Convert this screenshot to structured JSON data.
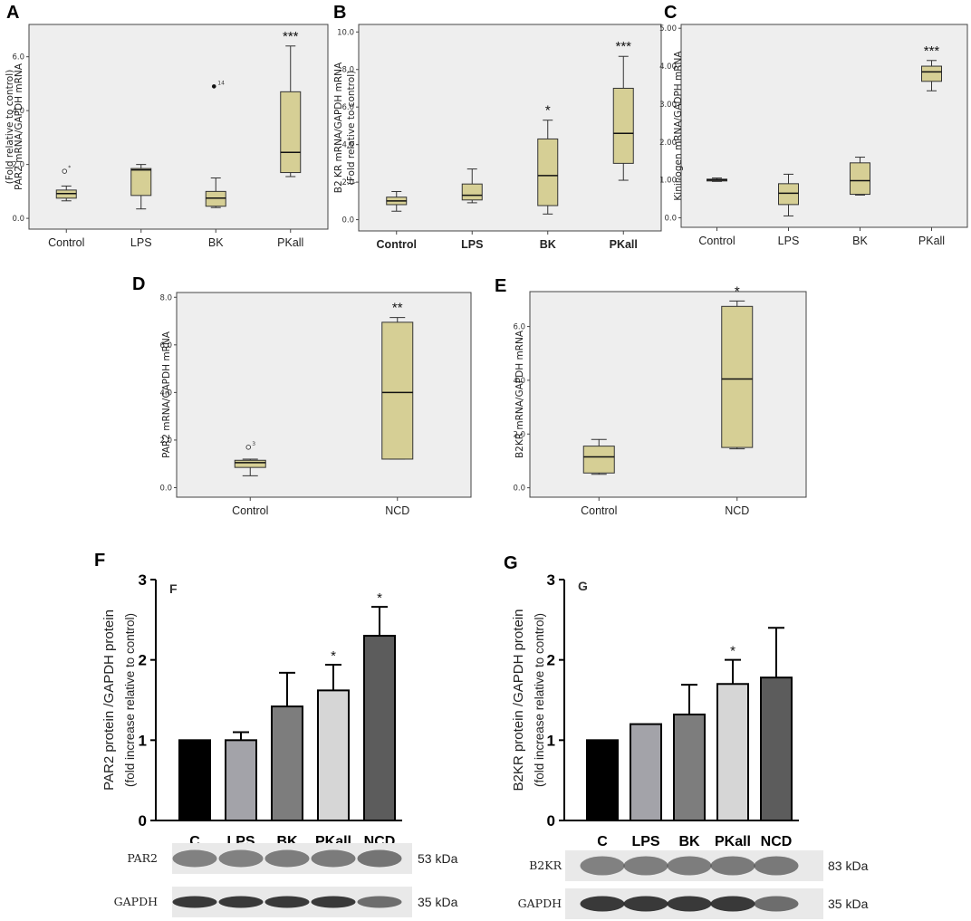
{
  "colors": {
    "box_fill": "#d6cf95",
    "box_stroke": "#333333",
    "plot_bg": "#eeeeee",
    "bar_colors": [
      "#000000",
      "#a3a3a9",
      "#7d7d7d",
      "#d6d6d6",
      "#5c5c5c"
    ]
  },
  "chart_data": [
    {
      "panel": "A",
      "type": "box",
      "ylabel": [
        "PAR2 mRNA/GAPDH mRNA",
        "(Fold relative to control)"
      ],
      "ylim": [
        -0.4,
        7.2
      ],
      "yticks": [
        0,
        2,
        4,
        6
      ],
      "ytick_labels": [
        "0.0",
        "2.0",
        "4.0",
        "6.0"
      ],
      "categories": [
        "Control",
        "LPS",
        "BK",
        "PKall"
      ],
      "boxes": [
        {
          "whislo": 0.65,
          "q1": 0.75,
          "med": 0.92,
          "q3": 1.05,
          "whishi": 1.2,
          "fliers": [
            {
              "y": 1.75,
              "sym": "circle",
              "label": "*"
            }
          ]
        },
        {
          "whislo": 0.35,
          "q1": 0.85,
          "med": 1.8,
          "q3": 1.85,
          "whishi": 2.0,
          "fliers": []
        },
        {
          "whislo": 0.4,
          "q1": 0.45,
          "med": 0.75,
          "q3": 1.0,
          "whishi": 1.5,
          "fliers": [
            {
              "y": 4.9,
              "sym": "dot",
              "label": "14"
            }
          ]
        },
        {
          "whislo": 1.55,
          "q1": 1.7,
          "med": 2.45,
          "q3": 4.7,
          "whishi": 6.4,
          "fliers": []
        }
      ],
      "significance": [
        "",
        "",
        "",
        "***"
      ]
    },
    {
      "panel": "B",
      "type": "box",
      "ylabel": [
        "B2 KR mRNA/GAPDH mRNA",
        "(Fold relative to control)"
      ],
      "ylim": [
        -0.6,
        10.4
      ],
      "yticks": [
        0,
        2,
        4,
        6,
        8,
        10
      ],
      "ytick_labels": [
        "0.0",
        "2.0",
        "4.0",
        "6.0",
        "8.0",
        "10.0"
      ],
      "categories": [
        "Control",
        "LPS",
        "BK",
        "PKall"
      ],
      "boxes": [
        {
          "whislo": 0.45,
          "q1": 0.8,
          "med": 1.0,
          "q3": 1.2,
          "whishi": 1.5,
          "fliers": []
        },
        {
          "whislo": 0.9,
          "q1": 1.05,
          "med": 1.3,
          "q3": 1.9,
          "whishi": 2.7,
          "fliers": []
        },
        {
          "whislo": 0.3,
          "q1": 0.75,
          "med": 2.35,
          "q3": 4.3,
          "whishi": 5.3,
          "fliers": []
        },
        {
          "whislo": 2.1,
          "q1": 3.0,
          "med": 4.6,
          "q3": 7.0,
          "whishi": 8.7,
          "fliers": []
        }
      ],
      "significance": [
        "",
        "",
        "*",
        "***"
      ]
    },
    {
      "panel": "C",
      "type": "box",
      "ylabel": [
        "Kininogen mRNA/GADPH mRNA"
      ],
      "ylim": [
        -0.25,
        5.1
      ],
      "yticks": [
        0,
        1,
        2,
        3,
        4,
        5
      ],
      "ytick_labels": [
        "0.0",
        "1.00",
        "2.00",
        "3.00",
        "4.00",
        "5.00"
      ],
      "categories": [
        "Control",
        "LPS",
        "BK",
        "PKall"
      ],
      "boxes": [
        {
          "whislo": 0.96,
          "q1": 0.98,
          "med": 1.0,
          "q3": 1.02,
          "whishi": 1.05,
          "fliers": []
        },
        {
          "whislo": 0.05,
          "q1": 0.35,
          "med": 0.65,
          "q3": 0.9,
          "whishi": 1.15,
          "fliers": []
        },
        {
          "whislo": 0.6,
          "q1": 0.62,
          "med": 0.98,
          "q3": 1.45,
          "whishi": 1.6,
          "fliers": []
        },
        {
          "whislo": 3.35,
          "q1": 3.6,
          "med": 3.85,
          "q3": 4.0,
          "whishi": 4.15,
          "fliers": []
        }
      ],
      "significance": [
        "",
        "",
        "",
        "***"
      ]
    },
    {
      "panel": "D",
      "type": "box",
      "ylabel": [
        "PAR2 mRNA/GAPDH mRNA"
      ],
      "ylim": [
        -0.4,
        8.2
      ],
      "yticks": [
        0,
        2,
        4,
        6,
        8
      ],
      "ytick_labels": [
        "0.0",
        "2.0",
        "4.0",
        "6.0",
        "8.0"
      ],
      "categories": [
        "Control",
        "NCD"
      ],
      "boxes": [
        {
          "whislo": 0.5,
          "q1": 0.85,
          "med": 1.05,
          "q3": 1.15,
          "whishi": 1.2,
          "fliers": [
            {
              "y": 1.7,
              "sym": "circle",
              "label": "3"
            }
          ]
        },
        {
          "whislo": 1.2,
          "q1": 1.2,
          "med": 4.0,
          "q3": 6.95,
          "whishi": 7.15,
          "fliers": []
        }
      ],
      "significance": [
        "",
        "**"
      ]
    },
    {
      "panel": "E",
      "type": "box",
      "ylabel": [
        "B2KR mRNA/GAPDH mRNA"
      ],
      "ylim": [
        -0.35,
        7.3
      ],
      "yticks": [
        0,
        2,
        4,
        6
      ],
      "ytick_labels": [
        "0.0",
        "2.0",
        "4.0",
        "6.0"
      ],
      "categories": [
        "Control",
        "NCD"
      ],
      "boxes": [
        {
          "whislo": 0.5,
          "q1": 0.55,
          "med": 1.15,
          "q3": 1.55,
          "whishi": 1.8,
          "fliers": []
        },
        {
          "whislo": 1.45,
          "q1": 1.5,
          "med": 4.05,
          "q3": 6.75,
          "whishi": 6.95,
          "fliers": []
        }
      ],
      "significance": [
        "",
        "*"
      ]
    },
    {
      "panel": "F",
      "type": "bar",
      "inner_label": "F",
      "ylabel": [
        "PAR2 protein /GAPDH protein",
        "(fold increase relative to control)"
      ],
      "ylim": [
        0,
        3
      ],
      "yticks": [
        0,
        1,
        2,
        3
      ],
      "ytick_labels": [
        "0",
        "1",
        "2",
        "3"
      ],
      "categories": [
        "C",
        "LPS",
        "BK",
        "PKall",
        "NCD"
      ],
      "values": [
        1.0,
        1.0,
        1.42,
        1.62,
        2.3
      ],
      "errors": [
        0,
        0.1,
        0.42,
        0.32,
        0.36
      ],
      "significance": [
        "",
        "",
        "",
        "*",
        "*"
      ],
      "blot_rows": [
        {
          "label": "PAR2",
          "kda": "53 kDa"
        },
        {
          "label": "GAPDH",
          "kda": "35 kDa"
        }
      ]
    },
    {
      "panel": "G",
      "type": "bar",
      "inner_label": "G",
      "ylabel": [
        "B2KR protein /GAPDH protein",
        "(fold increase relative to control)"
      ],
      "ylim": [
        0,
        3
      ],
      "yticks": [
        0,
        1,
        2,
        3
      ],
      "ytick_labels": [
        "0",
        "1",
        "2",
        "3"
      ],
      "categories": [
        "C",
        "LPS",
        "BK",
        "PKall",
        "NCD"
      ],
      "values": [
        1.0,
        1.2,
        1.32,
        1.7,
        1.78
      ],
      "errors": [
        0,
        0,
        0.37,
        0.3,
        0.62
      ],
      "significance": [
        "",
        "",
        "",
        "*",
        ""
      ],
      "blot_rows": [
        {
          "label": "B2KR",
          "kda": "83 kDa"
        },
        {
          "label": "GAPDH",
          "kda": "35 kDa"
        }
      ]
    }
  ]
}
